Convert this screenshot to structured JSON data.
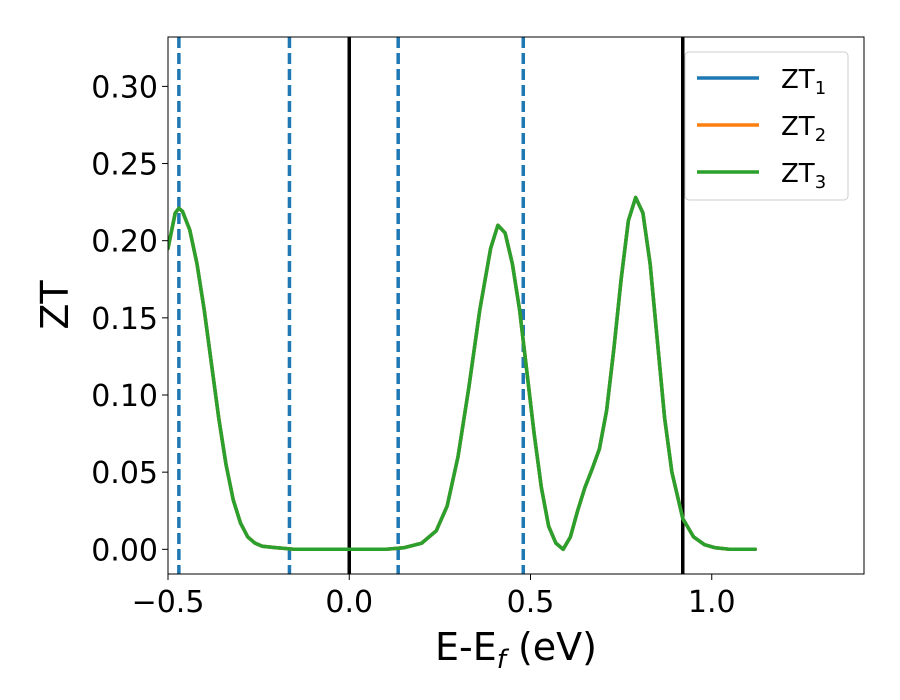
{
  "chart_data": {
    "type": "line",
    "title": "",
    "xlabel": "E-E",
    "xlabel_sub": "f",
    "xlabel_unit": " (eV)",
    "ylabel": "ZT",
    "xlim": [
      -0.5,
      1.42
    ],
    "ylim": [
      -0.016,
      0.332
    ],
    "xticks": [
      -0.5,
      0.0,
      0.5,
      1.0
    ],
    "xtick_labels": [
      "−0.5",
      "0.0",
      "0.5",
      "1.0"
    ],
    "yticks": [
      0.0,
      0.05,
      0.1,
      0.15,
      0.2,
      0.25,
      0.3
    ],
    "ytick_labels": [
      "0.00",
      "0.05",
      "0.10",
      "0.15",
      "0.20",
      "0.25",
      "0.30"
    ],
    "grid": false,
    "legend_position": "top-right",
    "vlines_dashed": {
      "color": "#1f77b4",
      "x": [
        -0.47,
        -0.165,
        0.135,
        0.48
      ]
    },
    "vlines_solid": {
      "color": "#000000",
      "x": [
        0.0,
        0.92
      ]
    },
    "series": [
      {
        "name": "ZT",
        "name_sub": "1",
        "color": "#1f77b4",
        "x": [
          -0.5,
          -0.48,
          -0.47,
          -0.46,
          -0.44,
          -0.42,
          -0.4,
          -0.38,
          -0.36,
          -0.34,
          -0.32,
          -0.3,
          -0.28,
          -0.26,
          -0.24,
          -0.2,
          -0.15,
          -0.1,
          0.0,
          0.1,
          0.15,
          0.2,
          0.24,
          0.27,
          0.3,
          0.33,
          0.36,
          0.39,
          0.41,
          0.43,
          0.45,
          0.47,
          0.49,
          0.51,
          0.53,
          0.55,
          0.57,
          0.59,
          0.61,
          0.63,
          0.65,
          0.67,
          0.69,
          0.71,
          0.73,
          0.75,
          0.77,
          0.79,
          0.81,
          0.83,
          0.85,
          0.87,
          0.89,
          0.92,
          0.95,
          0.98,
          1.01,
          1.05,
          1.1,
          1.12
        ],
        "y": [
          0.195,
          0.218,
          0.221,
          0.219,
          0.207,
          0.185,
          0.155,
          0.12,
          0.085,
          0.055,
          0.032,
          0.017,
          0.008,
          0.004,
          0.002,
          0.001,
          0.0,
          0.0,
          0.0,
          0.0,
          0.001,
          0.004,
          0.012,
          0.028,
          0.06,
          0.105,
          0.155,
          0.195,
          0.21,
          0.205,
          0.185,
          0.155,
          0.115,
          0.075,
          0.04,
          0.015,
          0.004,
          0.0,
          0.008,
          0.025,
          0.04,
          0.052,
          0.065,
          0.09,
          0.13,
          0.175,
          0.213,
          0.228,
          0.218,
          0.185,
          0.135,
          0.085,
          0.05,
          0.02,
          0.008,
          0.003,
          0.001,
          0.0,
          0.0,
          0.0
        ]
      },
      {
        "name": "ZT",
        "name_sub": "2",
        "color": "#ff7f0e",
        "x": [
          -0.5,
          -0.48,
          -0.47,
          -0.46,
          -0.44,
          -0.42,
          -0.4,
          -0.38,
          -0.36,
          -0.34,
          -0.32,
          -0.3,
          -0.28,
          -0.26,
          -0.24,
          -0.2,
          -0.15,
          -0.1,
          0.0,
          0.1,
          0.15,
          0.2,
          0.24,
          0.27,
          0.3,
          0.33,
          0.36,
          0.39,
          0.41,
          0.43,
          0.45,
          0.47,
          0.49,
          0.51,
          0.53,
          0.55,
          0.57,
          0.59,
          0.61,
          0.63,
          0.65,
          0.67,
          0.69,
          0.71,
          0.73,
          0.75,
          0.77,
          0.79,
          0.81,
          0.83,
          0.85,
          0.87,
          0.89,
          0.92,
          0.95,
          0.98,
          1.01,
          1.05,
          1.1,
          1.12
        ],
        "y": [
          0.195,
          0.218,
          0.221,
          0.219,
          0.207,
          0.185,
          0.155,
          0.12,
          0.085,
          0.055,
          0.032,
          0.017,
          0.008,
          0.004,
          0.002,
          0.001,
          0.0,
          0.0,
          0.0,
          0.0,
          0.001,
          0.004,
          0.012,
          0.028,
          0.06,
          0.105,
          0.155,
          0.195,
          0.21,
          0.205,
          0.185,
          0.155,
          0.115,
          0.075,
          0.04,
          0.015,
          0.004,
          0.0,
          0.008,
          0.025,
          0.04,
          0.052,
          0.065,
          0.09,
          0.13,
          0.175,
          0.213,
          0.228,
          0.218,
          0.185,
          0.135,
          0.085,
          0.05,
          0.02,
          0.008,
          0.003,
          0.001,
          0.0,
          0.0,
          0.0
        ]
      },
      {
        "name": "ZT",
        "name_sub": "3",
        "color": "#2ca02c",
        "x": [
          -0.5,
          -0.48,
          -0.47,
          -0.46,
          -0.44,
          -0.42,
          -0.4,
          -0.38,
          -0.36,
          -0.34,
          -0.32,
          -0.3,
          -0.28,
          -0.26,
          -0.24,
          -0.2,
          -0.15,
          -0.1,
          0.0,
          0.1,
          0.15,
          0.2,
          0.24,
          0.27,
          0.3,
          0.33,
          0.36,
          0.39,
          0.41,
          0.43,
          0.45,
          0.47,
          0.49,
          0.51,
          0.53,
          0.55,
          0.57,
          0.59,
          0.61,
          0.63,
          0.65,
          0.67,
          0.69,
          0.71,
          0.73,
          0.75,
          0.77,
          0.79,
          0.81,
          0.83,
          0.85,
          0.87,
          0.89,
          0.92,
          0.95,
          0.98,
          1.01,
          1.05,
          1.1,
          1.12
        ],
        "y": [
          0.195,
          0.218,
          0.221,
          0.219,
          0.207,
          0.185,
          0.155,
          0.12,
          0.085,
          0.055,
          0.032,
          0.017,
          0.008,
          0.004,
          0.002,
          0.001,
          0.0,
          0.0,
          0.0,
          0.0,
          0.001,
          0.004,
          0.012,
          0.028,
          0.06,
          0.105,
          0.155,
          0.195,
          0.21,
          0.205,
          0.185,
          0.155,
          0.115,
          0.075,
          0.04,
          0.015,
          0.004,
          0.0,
          0.008,
          0.025,
          0.04,
          0.052,
          0.065,
          0.09,
          0.13,
          0.175,
          0.213,
          0.228,
          0.218,
          0.185,
          0.135,
          0.085,
          0.05,
          0.02,
          0.008,
          0.003,
          0.001,
          0.0,
          0.0,
          0.0
        ]
      }
    ]
  }
}
